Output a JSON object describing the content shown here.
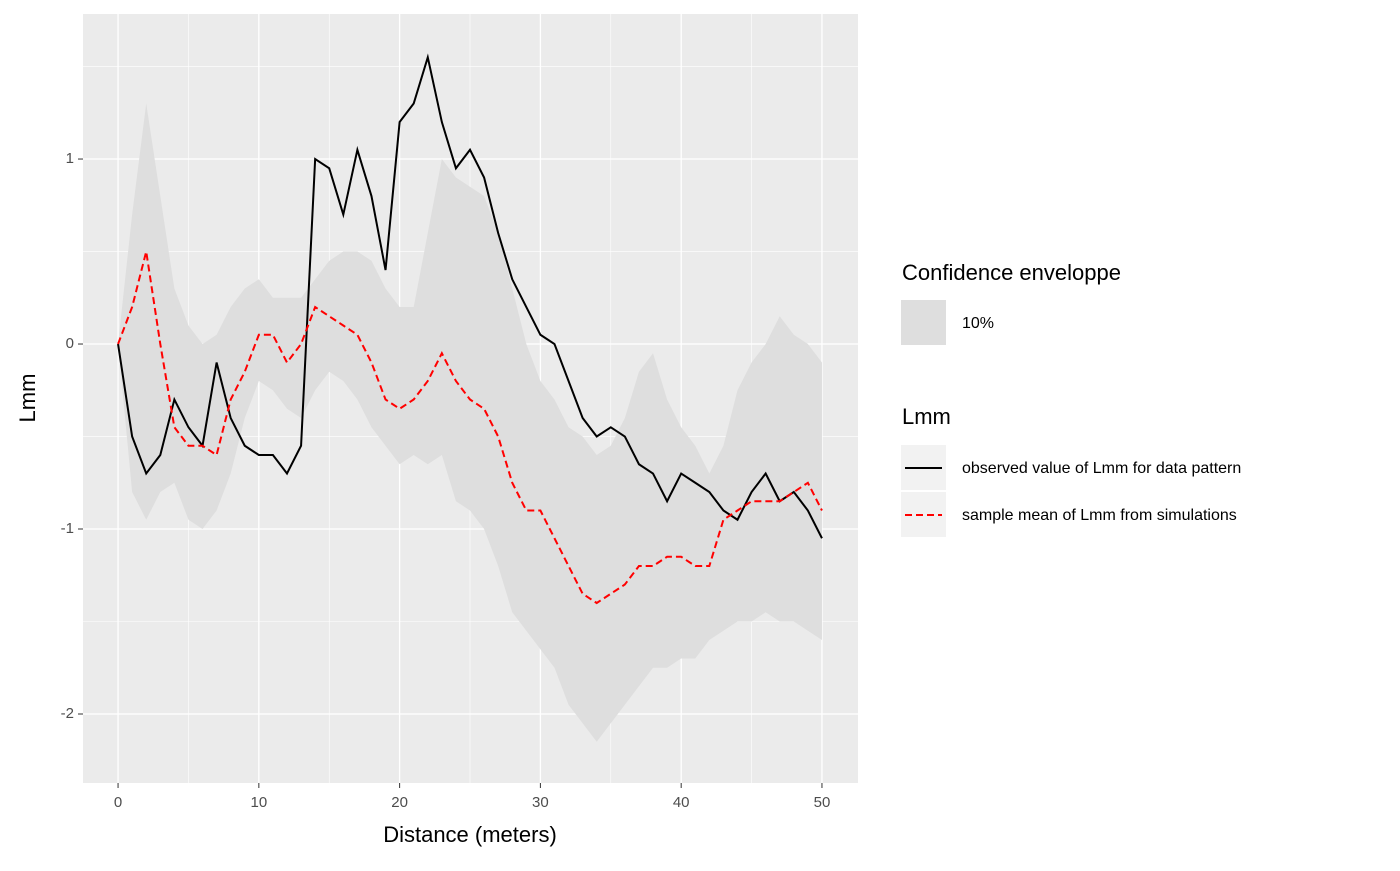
{
  "chart_data": {
    "type": "line",
    "xlabel": "Distance (meters)",
    "ylabel": "Lmm",
    "xlim": [
      -2.49,
      52.56
    ],
    "xticks": [
      0,
      10,
      20,
      30,
      40,
      50
    ],
    "ylim": [
      -2.373,
      1.784
    ],
    "yticks": [
      -2,
      -1,
      0,
      1
    ],
    "grid": true,
    "x": [
      0,
      1,
      2,
      3,
      4,
      5,
      6,
      7,
      8,
      9,
      10,
      11,
      12,
      13,
      14,
      15,
      16,
      17,
      18,
      19,
      20,
      21,
      22,
      23,
      24,
      25,
      26,
      27,
      28,
      29,
      30,
      31,
      32,
      33,
      34,
      35,
      36,
      37,
      38,
      39,
      40,
      41,
      42,
      43,
      44,
      45,
      46,
      47,
      48,
      49,
      50
    ],
    "band": {
      "legend_title": "Confidence enveloppe",
      "name": "10%",
      "color": "#dedede",
      "lower": [
        0,
        -0.8,
        -0.95,
        -0.8,
        -0.75,
        -0.95,
        -1.0,
        -0.9,
        -0.7,
        -0.4,
        -0.2,
        -0.25,
        -0.35,
        -0.4,
        -0.25,
        -0.15,
        -0.2,
        -0.3,
        -0.45,
        -0.55,
        -0.65,
        -0.6,
        -0.65,
        -0.6,
        -0.85,
        -0.9,
        -1.0,
        -1.2,
        -1.45,
        -1.55,
        -1.65,
        -1.75,
        -1.95,
        -2.05,
        -2.15,
        -2.05,
        -1.95,
        -1.85,
        -1.75,
        -1.75,
        -1.7,
        -1.7,
        -1.6,
        -1.55,
        -1.5,
        -1.5,
        -1.45,
        -1.5,
        -1.5,
        -1.55,
        -1.6
      ],
      "upper": [
        0,
        0.7,
        1.3,
        0.8,
        0.3,
        0.1,
        0.0,
        0.05,
        0.2,
        0.3,
        0.35,
        0.25,
        0.25,
        0.25,
        0.35,
        0.45,
        0.5,
        0.5,
        0.45,
        0.3,
        0.2,
        0.2,
        0.6,
        1.0,
        0.9,
        0.85,
        0.8,
        0.6,
        0.3,
        0.0,
        -0.2,
        -0.3,
        -0.45,
        -0.5,
        -0.6,
        -0.55,
        -0.4,
        -0.15,
        -0.05,
        -0.3,
        -0.45,
        -0.55,
        -0.7,
        -0.55,
        -0.25,
        -0.1,
        0.0,
        0.15,
        0.05,
        0.0,
        -0.1
      ]
    },
    "legend_title": "Lmm",
    "series": [
      {
        "name": "observed value of Lmm for data pattern",
        "color": "#000000",
        "dashed": false,
        "values": [
          0,
          -0.5,
          -0.7,
          -0.6,
          -0.3,
          -0.45,
          -0.55,
          -0.1,
          -0.4,
          -0.55,
          -0.6,
          -0.6,
          -0.7,
          -0.55,
          1.0,
          0.95,
          0.7,
          1.05,
          0.8,
          0.4,
          1.2,
          1.3,
          1.55,
          1.2,
          0.95,
          1.05,
          0.9,
          0.6,
          0.35,
          0.2,
          0.05,
          0.0,
          -0.2,
          -0.4,
          -0.5,
          -0.45,
          -0.5,
          -0.65,
          -0.7,
          -0.85,
          -0.7,
          -0.75,
          -0.8,
          -0.9,
          -0.95,
          -0.8,
          -0.7,
          -0.85,
          -0.8,
          -0.9,
          -1.05
        ]
      },
      {
        "name": "sample mean of Lmm from simulations",
        "color": "#ff0000",
        "dashed": true,
        "values": [
          0,
          0.2,
          0.5,
          0.0,
          -0.45,
          -0.55,
          -0.55,
          -0.6,
          -0.3,
          -0.15,
          0.05,
          0.05,
          -0.1,
          0.0,
          0.2,
          0.15,
          0.1,
          0.05,
          -0.1,
          -0.3,
          -0.35,
          -0.3,
          -0.2,
          -0.05,
          -0.2,
          -0.3,
          -0.35,
          -0.5,
          -0.75,
          -0.9,
          -0.9,
          -1.05,
          -1.2,
          -1.35,
          -1.4,
          -1.35,
          -1.3,
          -1.2,
          -1.2,
          -1.15,
          -1.15,
          -1.2,
          -1.2,
          -0.95,
          -0.9,
          -0.85,
          -0.85,
          -0.85,
          -0.8,
          -0.75,
          -0.9
        ]
      }
    ]
  }
}
